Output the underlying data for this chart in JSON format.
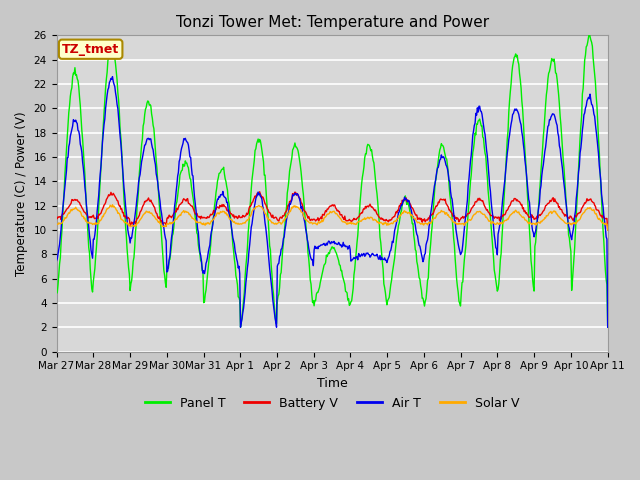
{
  "title": "Tonzi Tower Met: Temperature and Power",
  "xlabel": "Time",
  "ylabel": "Temperature (C) / Power (V)",
  "ylim": [
    0,
    26
  ],
  "yticks": [
    0,
    2,
    4,
    6,
    8,
    10,
    12,
    14,
    16,
    18,
    20,
    22,
    24,
    26
  ],
  "xtick_labels": [
    "Mar 27",
    "Mar 28",
    "Mar 29",
    "Mar 30",
    "Mar 31",
    "Apr 1",
    "Apr 2",
    "Apr 3",
    "Apr 4",
    "Apr 5",
    "Apr 6",
    "Apr 7",
    "Apr 8",
    "Apr 9",
    "Apr 10",
    "Apr 11"
  ],
  "annotation_text": "TZ_tmet",
  "annotation_color": "#cc0000",
  "annotation_bg": "#ffffcc",
  "annotation_border": "#aa8800",
  "colors": {
    "Panel T": "#00ee00",
    "Battery V": "#ee0000",
    "Air T": "#0000ee",
    "Solar V": "#ffaa00"
  },
  "fig_bg": "#c8c8c8",
  "plot_bg": "#d8d8d8",
  "grid_color": "#ffffff",
  "figsize": [
    6.4,
    4.8
  ],
  "dpi": 100
}
